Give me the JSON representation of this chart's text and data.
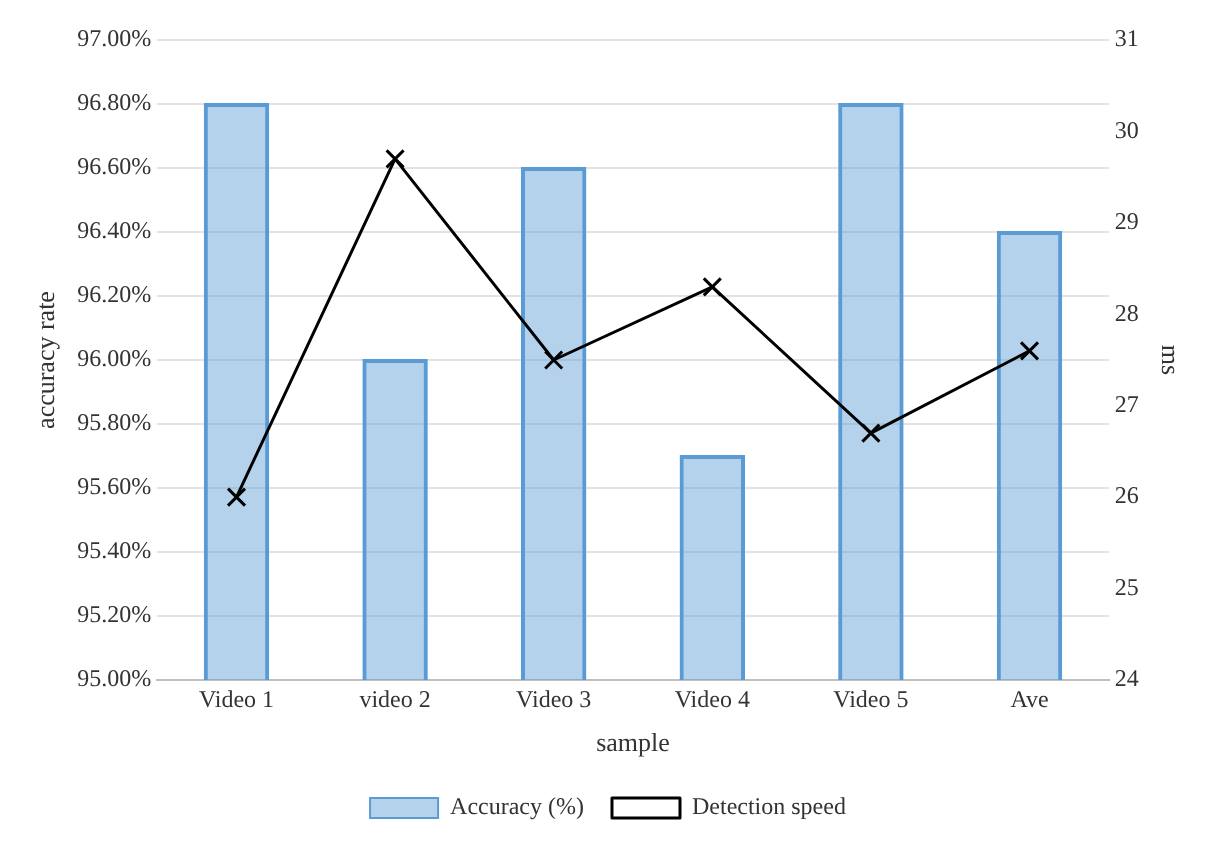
{
  "chart_data": {
    "type": "bar",
    "xlabel": "sample",
    "ylabel": "accuracy rate",
    "y2label": "ms",
    "categories": [
      "Video 1",
      "video 2",
      "Video 3",
      "Video 4",
      "Video 5",
      "Ave"
    ],
    "series": [
      {
        "name": "Accuracy (%)",
        "type": "bar",
        "color": "#5b9bd5",
        "values": [
          96.8,
          96.0,
          96.6,
          95.7,
          96.8,
          96.4
        ]
      },
      {
        "name": "Detection speed",
        "type": "line",
        "axis": "y2",
        "color": "#000000",
        "marker": "cross",
        "values": [
          26.0,
          29.7,
          27.5,
          28.3,
          26.7,
          27.6
        ]
      }
    ],
    "ylim": [
      95,
      97
    ],
    "yticks": [
      {
        "value": 95,
        "label": "95.00%"
      },
      {
        "value": 95.2,
        "label": "95.20%"
      },
      {
        "value": 95.4,
        "label": "95.40%"
      },
      {
        "value": 95.6,
        "label": "95.60%"
      },
      {
        "value": 95.8,
        "label": "95.80%"
      },
      {
        "value": 96,
        "label": "96.00%"
      },
      {
        "value": 96.2,
        "label": "96.20%"
      },
      {
        "value": 96.4,
        "label": "96.40%"
      },
      {
        "value": 96.6,
        "label": "96.60%"
      },
      {
        "value": 96.8,
        "label": "96.80%"
      },
      {
        "value": 97,
        "label": "97.00%"
      }
    ],
    "y2lim": [
      24,
      31
    ],
    "y2ticks": [
      24,
      25,
      26,
      27,
      28,
      29,
      30,
      31
    ],
    "grid": "y",
    "legend": "bottom"
  }
}
